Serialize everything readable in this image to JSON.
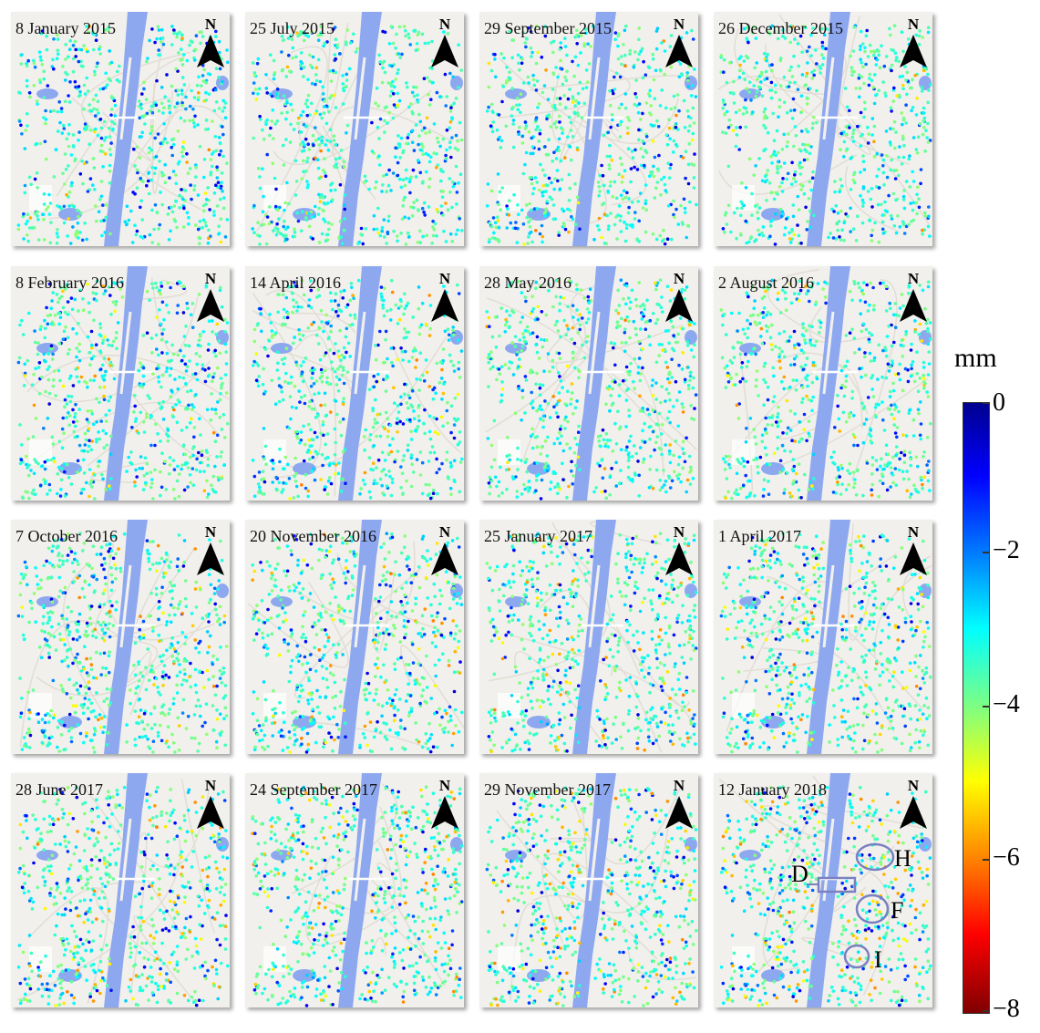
{
  "panels": [
    {
      "date": "8 January 2015",
      "intensity": 0.05
    },
    {
      "date": "25 July 2015",
      "intensity": 0.08
    },
    {
      "date": "29 September 2015",
      "intensity": 0.1
    },
    {
      "date": "26 December 2015",
      "intensity": 0.1
    },
    {
      "date": "8 February 2016",
      "intensity": 0.12
    },
    {
      "date": "14 April 2016",
      "intensity": 0.14
    },
    {
      "date": "28 May 2016",
      "intensity": 0.16
    },
    {
      "date": "2 August 2016",
      "intensity": 0.18
    },
    {
      "date": "7 October 2016",
      "intensity": 0.2
    },
    {
      "date": "20 November 2016",
      "intensity": 0.22
    },
    {
      "date": "25 January 2017",
      "intensity": 0.25
    },
    {
      "date": "1 April 2017",
      "intensity": 0.27
    },
    {
      "date": "28 June 2017",
      "intensity": 0.3
    },
    {
      "date": "24 September 2017",
      "intensity": 0.33
    },
    {
      "date": "29 November 2017",
      "intensity": 0.36
    },
    {
      "date": "12 January 2018",
      "intensity": 0.4
    }
  ],
  "north_label": "N",
  "colorbar": {
    "unit": "mm",
    "ticks": [
      "0",
      "−2",
      "−4",
      "−6",
      "−8"
    ],
    "tick_values": [
      0,
      -2,
      -4,
      -6,
      -8
    ],
    "min": -8,
    "max": 0
  },
  "annotations": {
    "D": "D",
    "H": "H",
    "F": "F",
    "I": "I"
  },
  "colors": {
    "river": "#8ea8f0",
    "background": "#f1f0ec",
    "annotation_outline": "#7a80c0"
  }
}
